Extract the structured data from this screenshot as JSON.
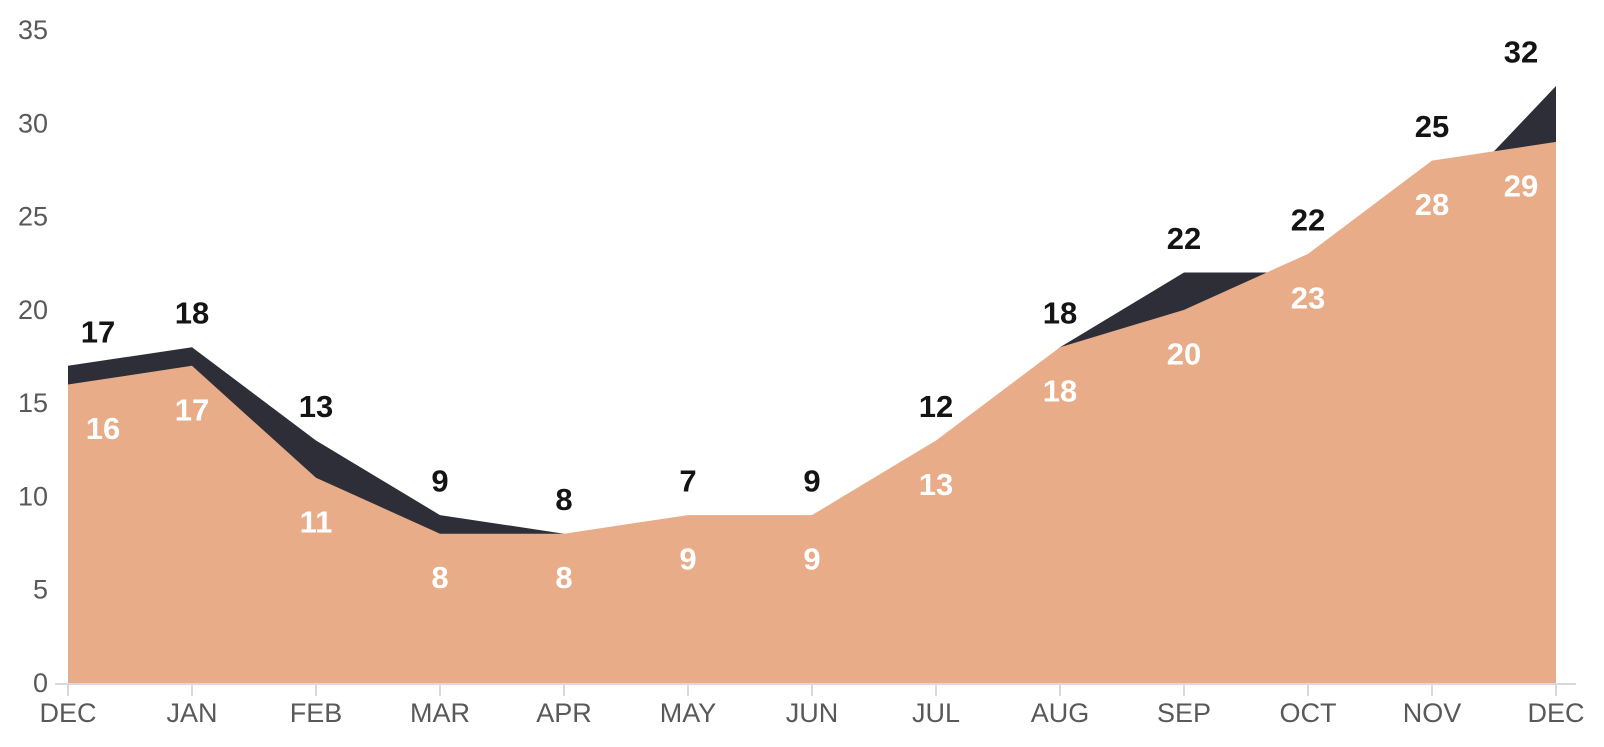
{
  "chart_data": {
    "type": "area",
    "title": "",
    "xlabel": "",
    "ylabel": "",
    "categories": [
      "DEC",
      "JAN",
      "FEB",
      "MAR",
      "APR",
      "MAY",
      "JUN",
      "JUL",
      "AUG",
      "SEP",
      "OCT",
      "NOV",
      "DEC"
    ],
    "series": [
      {
        "id": "dark_series",
        "color": "#2e2e38",
        "label_color": "#141414",
        "values": [
          17,
          18,
          13,
          9,
          8,
          7,
          9,
          12,
          18,
          22,
          22,
          25,
          32
        ]
      },
      {
        "id": "light_series",
        "color": "#e8ac88",
        "label_color": "#ffffff",
        "values": [
          16,
          17,
          11,
          8,
          8,
          9,
          9,
          13,
          18,
          20,
          23,
          28,
          29
        ]
      }
    ],
    "ylim": [
      0,
      35
    ],
    "y_ticks": [
      0,
      5,
      10,
      15,
      20,
      25,
      30,
      35
    ],
    "grid": false,
    "legend": "none",
    "axis_line_color": "#d9d9d9",
    "axis_text_color": "#595959",
    "background_color": "#ffffff"
  }
}
